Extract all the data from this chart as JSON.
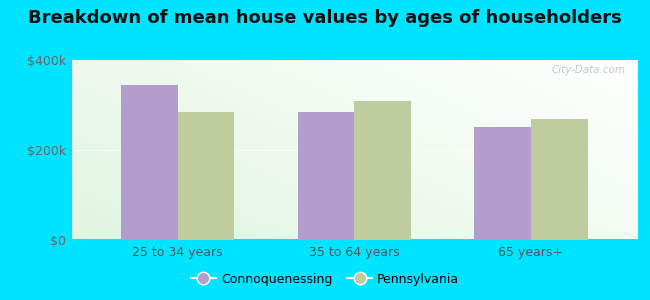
{
  "title": "Breakdown of mean house values by ages of householders",
  "categories": [
    "25 to 34 years",
    "35 to 64 years",
    "65 years+"
  ],
  "connoquenessing": [
    345000,
    285000,
    252000
  ],
  "pennsylvania": [
    285000,
    308000,
    268000
  ],
  "bar_color_conno": "#b39dcc",
  "bar_color_penn": "#bfcc9d",
  "ylim": [
    0,
    400000
  ],
  "ytick_labels": [
    "$0",
    "$200k",
    "$400k"
  ],
  "ytick_vals": [
    0,
    200000,
    400000
  ],
  "background_outer": "#00e5ff",
  "legend_label_conno": "Connoquenessing",
  "legend_label_penn": "Pennsylvania",
  "title_fontsize": 13,
  "bar_width": 0.32,
  "watermark": "City-Data.com"
}
